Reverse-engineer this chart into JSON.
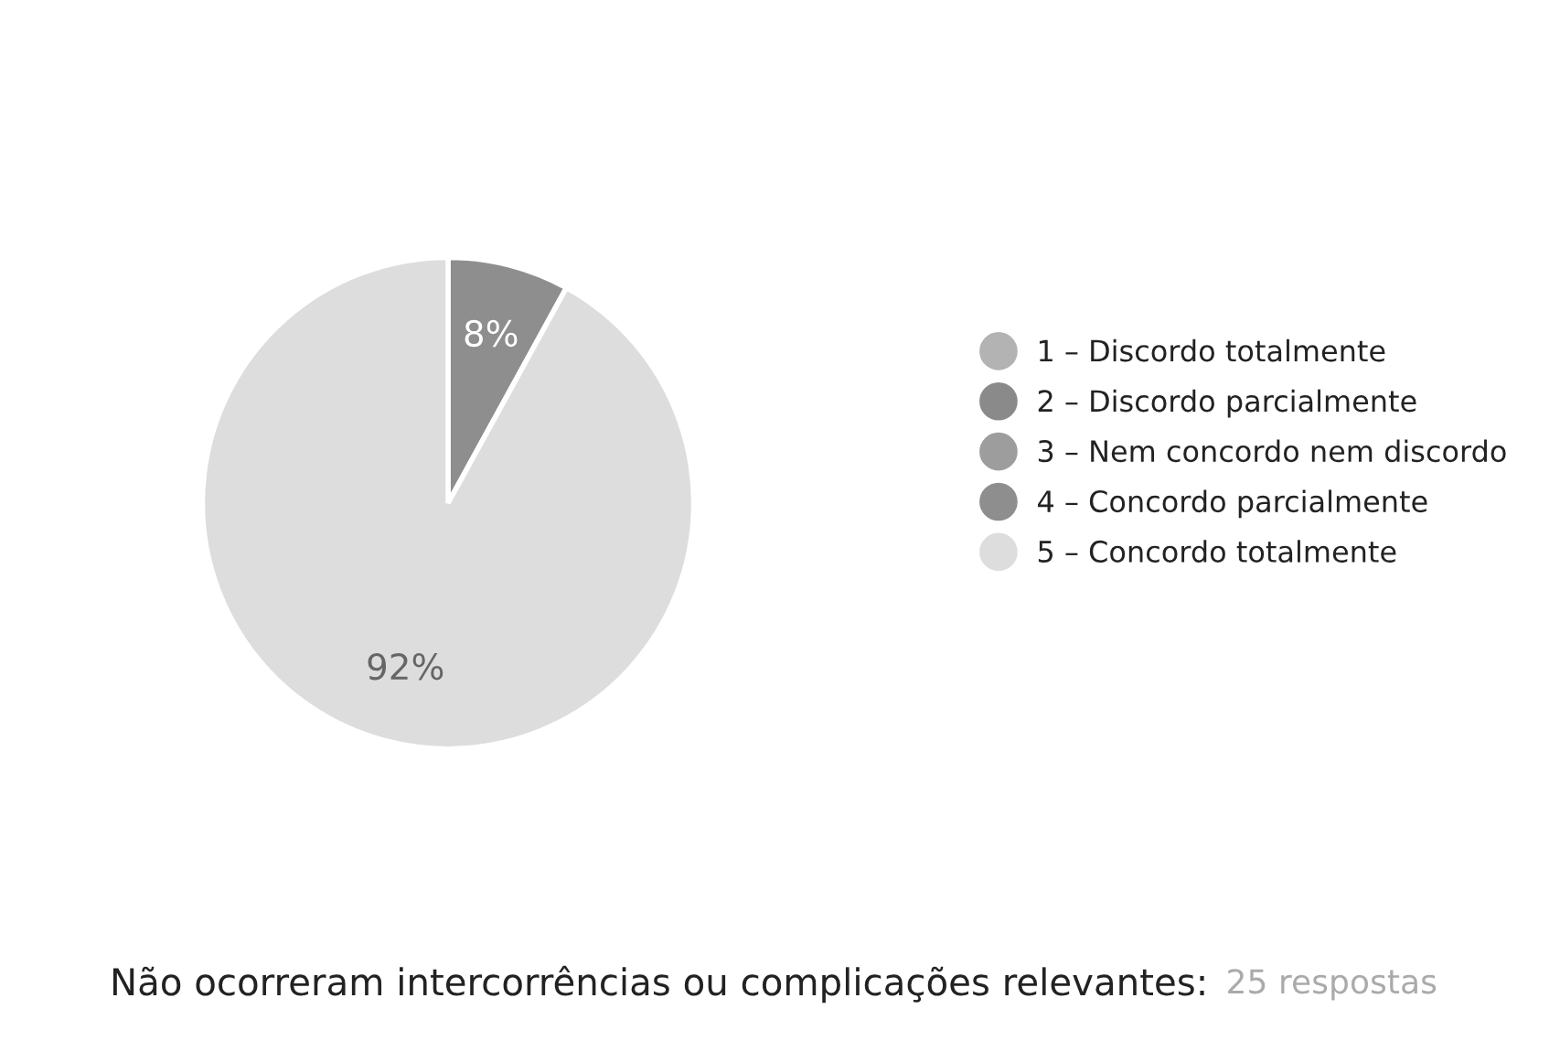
{
  "chart_data": {
    "type": "pie",
    "title": "Não ocorreram intercorrências ou complicações relevantes:",
    "subtitle": "25 respostas",
    "categories": [
      "1 – Discordo totalmente",
      "2 – Discordo parcialmente",
      "3 – Nem concordo nem discordo",
      "4 – Concordo parcialmente",
      "5 – Concordo totalmente"
    ],
    "values": [
      0,
      0,
      0,
      8,
      92
    ],
    "value_labels": [
      null,
      null,
      null,
      "8%",
      "92%"
    ],
    "colors": [
      "#b3b3b3",
      "#8a8a8a",
      "#9d9d9d",
      "#8e8e8e",
      "#dddddd"
    ],
    "legend": "right"
  }
}
